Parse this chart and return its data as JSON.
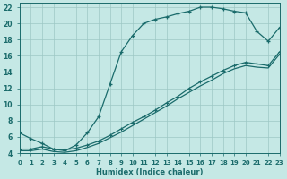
{
  "xlabel": "Humidex (Indice chaleur)",
  "xlim": [
    0,
    23
  ],
  "ylim": [
    4,
    22.5
  ],
  "bg_color": "#c5e8e5",
  "grid_color": "#9dc8c5",
  "line_color": "#1a6b6b",
  "xticks": [
    0,
    1,
    2,
    3,
    4,
    5,
    6,
    7,
    8,
    9,
    10,
    11,
    12,
    13,
    14,
    15,
    16,
    17,
    18,
    19,
    20,
    21,
    22,
    23
  ],
  "yticks": [
    4,
    6,
    8,
    10,
    12,
    14,
    16,
    18,
    20,
    22
  ],
  "curve_upper_x": [
    0,
    1,
    2,
    3,
    4,
    5,
    6,
    7,
    8,
    9,
    10,
    11,
    12,
    13,
    14,
    15,
    16,
    17,
    18,
    19,
    20,
    21,
    22,
    23
  ],
  "curve_upper_y": [
    6.5,
    5.8,
    5.2,
    4.5,
    4.3,
    5.0,
    6.5,
    8.5,
    12.5,
    16.5,
    18.5,
    20.0,
    20.5,
    20.8,
    21.2,
    21.5,
    22.0,
    22.0,
    21.8,
    21.5,
    21.3,
    19.0,
    17.8,
    19.5
  ],
  "curve_mid_x": [
    0,
    1,
    2,
    3,
    4,
    5,
    6,
    7,
    8,
    9,
    10,
    11,
    12,
    13,
    14,
    15,
    16,
    17,
    18,
    19,
    20,
    21,
    22,
    23
  ],
  "curve_mid_y": [
    4.5,
    4.5,
    4.8,
    4.5,
    4.4,
    4.6,
    5.0,
    5.5,
    6.2,
    7.0,
    7.8,
    8.5,
    9.3,
    10.2,
    11.0,
    12.0,
    12.8,
    13.5,
    14.2,
    14.8,
    15.2,
    15.0,
    14.8,
    16.5
  ],
  "curve_low_x": [
    0,
    1,
    2,
    3,
    4,
    5,
    6,
    7,
    8,
    9,
    10,
    11,
    12,
    13,
    14,
    15,
    16,
    17,
    18,
    19,
    20,
    21,
    22,
    23
  ],
  "curve_low_y": [
    4.3,
    4.3,
    4.5,
    4.2,
    4.1,
    4.3,
    4.7,
    5.2,
    5.9,
    6.6,
    7.4,
    8.2,
    9.0,
    9.8,
    10.7,
    11.5,
    12.3,
    13.0,
    13.8,
    14.4,
    14.8,
    14.6,
    14.5,
    16.2
  ]
}
